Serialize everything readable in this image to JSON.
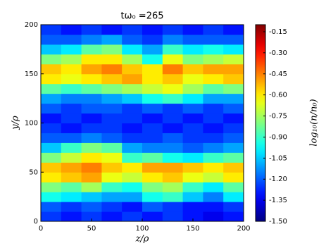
{
  "chart_data": {
    "type": "heatmap",
    "title": "tω₀ =265",
    "xlabel": "z/ρ",
    "ylabel": "y/ρ",
    "colorbar_label": "log₁₀(n/n₀)",
    "xlim": [
      0,
      200
    ],
    "ylim": [
      0,
      200
    ],
    "xticks": [
      0,
      50,
      100,
      150,
      200
    ],
    "yticks": [
      0,
      50,
      100,
      150,
      200
    ],
    "colormap": "jet",
    "clim": [
      -1.5,
      -0.1
    ],
    "cticks": [
      {
        "value": -1.5,
        "label": "-1.50"
      },
      -1.35,
      {
        "value": -1.2,
        "label": "-1.20"
      },
      -1.05,
      {
        "value": -0.9,
        "label": "-0.90"
      },
      -0.75,
      {
        "value": -0.6,
        "label": "-0.60"
      },
      -0.45,
      {
        "value": -0.3,
        "label": "-0.30"
      },
      -0.15
    ],
    "x_edges": [
      0,
      20,
      40,
      60,
      80,
      100,
      120,
      140,
      160,
      180,
      200
    ],
    "y_edges": [
      0,
      10,
      20,
      30,
      40,
      50,
      60,
      70,
      80,
      90,
      100,
      110,
      120,
      130,
      140,
      150,
      160,
      170,
      180,
      190,
      200
    ],
    "z": [
      [
        -1.25,
        -1.3,
        -1.25,
        -1.3,
        -1.25,
        -1.3,
        -1.25,
        -1.3,
        -1.35,
        -1.3
      ],
      [
        -1.2,
        -1.25,
        -1.2,
        -1.25,
        -1.3,
        -1.2,
        -1.25,
        -1.3,
        -1.3,
        -1.25
      ],
      [
        -0.95,
        -1.0,
        -1.05,
        -1.1,
        -1.1,
        -0.95,
        -0.9,
        -1.05,
        -1.15,
        -1.0
      ],
      [
        -0.8,
        -0.85,
        -0.75,
        -0.9,
        -0.95,
        -0.8,
        -0.75,
        -0.9,
        -1.0,
        -0.85
      ],
      [
        -0.6,
        -0.55,
        -0.5,
        -0.65,
        -0.7,
        -0.6,
        -0.55,
        -0.65,
        -0.7,
        -0.6
      ],
      [
        -0.55,
        -0.5,
        -0.45,
        -0.55,
        -0.6,
        -0.5,
        -0.5,
        -0.55,
        -0.6,
        -0.55
      ],
      [
        -0.8,
        -0.7,
        -0.6,
        -0.65,
        -0.9,
        -0.85,
        -0.95,
        -1.0,
        -0.9,
        -0.85
      ],
      [
        -1.05,
        -0.9,
        -0.8,
        -0.85,
        -1.1,
        -1.15,
        -1.15,
        -1.2,
        -1.15,
        -1.1
      ],
      [
        -1.2,
        -1.2,
        -1.15,
        -1.2,
        -1.25,
        -1.25,
        -1.2,
        -1.25,
        -1.25,
        -1.2
      ],
      [
        -1.25,
        -1.3,
        -1.25,
        -1.25,
        -1.3,
        -1.25,
        -1.3,
        -1.25,
        -1.3,
        -1.25
      ],
      [
        -1.3,
        -1.25,
        -1.3,
        -1.25,
        -1.25,
        -1.3,
        -1.25,
        -1.3,
        -1.25,
        -1.3
      ],
      [
        -1.2,
        -1.25,
        -1.2,
        -1.2,
        -1.25,
        -1.2,
        -1.25,
        -1.2,
        -1.25,
        -1.2
      ],
      [
        -1.1,
        -1.15,
        -1.15,
        -1.1,
        -1.05,
        -0.95,
        -0.9,
        -1.0,
        -1.1,
        -1.1
      ],
      [
        -0.85,
        -0.9,
        -0.85,
        -0.8,
        -0.75,
        -0.7,
        -0.65,
        -0.75,
        -0.85,
        -0.8
      ],
      [
        -0.6,
        -0.65,
        -0.6,
        -0.55,
        -0.5,
        -0.6,
        -0.55,
        -0.65,
        -0.6,
        -0.55
      ],
      [
        -0.55,
        -0.6,
        -0.5,
        -0.45,
        -0.55,
        -0.6,
        -0.45,
        -0.55,
        -0.5,
        -0.5
      ],
      [
        -0.8,
        -0.75,
        -0.6,
        -0.6,
        -0.75,
        -0.95,
        -0.65,
        -0.8,
        -0.75,
        -0.7
      ],
      [
        -1.05,
        -1.0,
        -0.85,
        -0.8,
        -1.0,
        -1.1,
        -0.9,
        -1.0,
        -0.95,
        -1.0
      ],
      [
        -1.2,
        -1.2,
        -1.15,
        -1.1,
        -1.2,
        -1.25,
        -1.15,
        -1.2,
        -1.2,
        -1.2
      ],
      [
        -1.25,
        -1.3,
        -1.25,
        -1.3,
        -1.25,
        -1.3,
        -1.25,
        -1.3,
        -1.25,
        -1.3
      ]
    ]
  }
}
